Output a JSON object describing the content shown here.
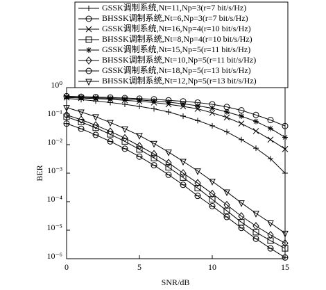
{
  "chart_data": {
    "type": "line",
    "xlabel": "SNR/dB",
    "ylabel": "BER",
    "log_y": true,
    "x": [
      0,
      1,
      2,
      3,
      4,
      5,
      6,
      7,
      8,
      9,
      10,
      11,
      12,
      13,
      14,
      15
    ],
    "xlim": [
      0,
      15
    ],
    "xticks": [
      0,
      5,
      10,
      15
    ],
    "ylim": [
      1e-06,
      1
    ],
    "yticks": [
      {
        "value": 1,
        "label": "10⁰"
      },
      {
        "value": 0.1,
        "label": "10⁻¹"
      },
      {
        "value": 0.01,
        "label": "10⁻²"
      },
      {
        "value": 0.001,
        "label": "10⁻³"
      },
      {
        "value": 0.0001,
        "label": "10⁻⁴"
      },
      {
        "value": 1e-05,
        "label": "10⁻⁵"
      },
      {
        "value": 1e-06,
        "label": "10⁻⁶"
      }
    ],
    "legend": "top-right",
    "series": [
      {
        "name": "GSSK调制系统,Nt=11,Np=3(r=7 bit/s/Hz)",
        "color": "#000000",
        "marker": "plus",
        "values": [
          0.42,
          0.38,
          0.34,
          0.3,
          0.26,
          0.22,
          0.18,
          0.14,
          0.1,
          0.07,
          0.046,
          0.028,
          0.015,
          0.0075,
          0.0032,
          0.001
        ]
      },
      {
        "name": "BHSSK调制系统,Nt=6,Np=3(r=7 bit/s/Hz)",
        "color": "#000000",
        "marker": "circle-bar",
        "values": [
          0.055,
          0.036,
          0.022,
          0.013,
          0.0072,
          0.0038,
          0.0019,
          0.00088,
          0.00039,
          0.00016,
          7e-05,
          2.9e-05,
          1.2e-05,
          5e-06,
          2.3e-06,
          1.1e-06
        ]
      },
      {
        "name": "GSSK调制系统,Nt=16,Np=4(r=10 bit/s/Hz)",
        "color": "#000000",
        "marker": "x",
        "values": [
          0.45,
          0.43,
          0.41,
          0.39,
          0.36,
          0.33,
          0.3,
          0.26,
          0.22,
          0.18,
          0.13,
          0.09,
          0.055,
          0.03,
          0.015,
          0.007
        ]
      },
      {
        "name": "BHSSK调制系统,Nt=8,Np=4(r=10 bit/s/Hz)",
        "color": "#000000",
        "marker": "square",
        "values": [
          0.095,
          0.062,
          0.039,
          0.023,
          0.013,
          0.0068,
          0.0034,
          0.0016,
          0.0007,
          0.0003,
          0.00012,
          4.8e-05,
          1.9e-05,
          8.5e-06,
          4.3e-06,
          2.3e-06
        ]
      },
      {
        "name": "GSSK调制系统,Nt=15,Np=5(r=11 bit/s/Hz)",
        "color": "#000000",
        "marker": "star",
        "values": [
          0.48,
          0.46,
          0.44,
          0.42,
          0.4,
          0.37,
          0.34,
          0.31,
          0.27,
          0.23,
          0.19,
          0.14,
          0.1,
          0.065,
          0.037,
          0.018
        ]
      },
      {
        "name": "BHSSK调制系统,Nt=10,Np=5(r=11 bit/s/Hz)",
        "color": "#000000",
        "marker": "diamond",
        "values": [
          0.11,
          0.075,
          0.048,
          0.029,
          0.017,
          0.009,
          0.0047,
          0.0023,
          0.001,
          0.00045,
          0.00019,
          7.7e-05,
          3.1e-05,
          1.4e-05,
          6.8e-06,
          3.5e-06
        ]
      },
      {
        "name": "GSSK调制系统,Nt=18,Np=5(r=13 bit/s/Hz)",
        "color": "#000000",
        "marker": "circle",
        "values": [
          0.5,
          0.48,
          0.47,
          0.45,
          0.43,
          0.41,
          0.39,
          0.36,
          0.33,
          0.3,
          0.26,
          0.21,
          0.16,
          0.11,
          0.073,
          0.045
        ]
      },
      {
        "name": "BHSSK调制系统,Nt=12,Np=5(r=13 bit/s/Hz)",
        "color": "#000000",
        "marker": "triangle-down",
        "values": [
          0.2,
          0.14,
          0.095,
          0.06,
          0.036,
          0.021,
          0.011,
          0.0055,
          0.0026,
          0.0012,
          0.00052,
          0.00022,
          9.1e-05,
          3.9e-05,
          1.8e-05,
          7.8e-06
        ]
      }
    ]
  }
}
